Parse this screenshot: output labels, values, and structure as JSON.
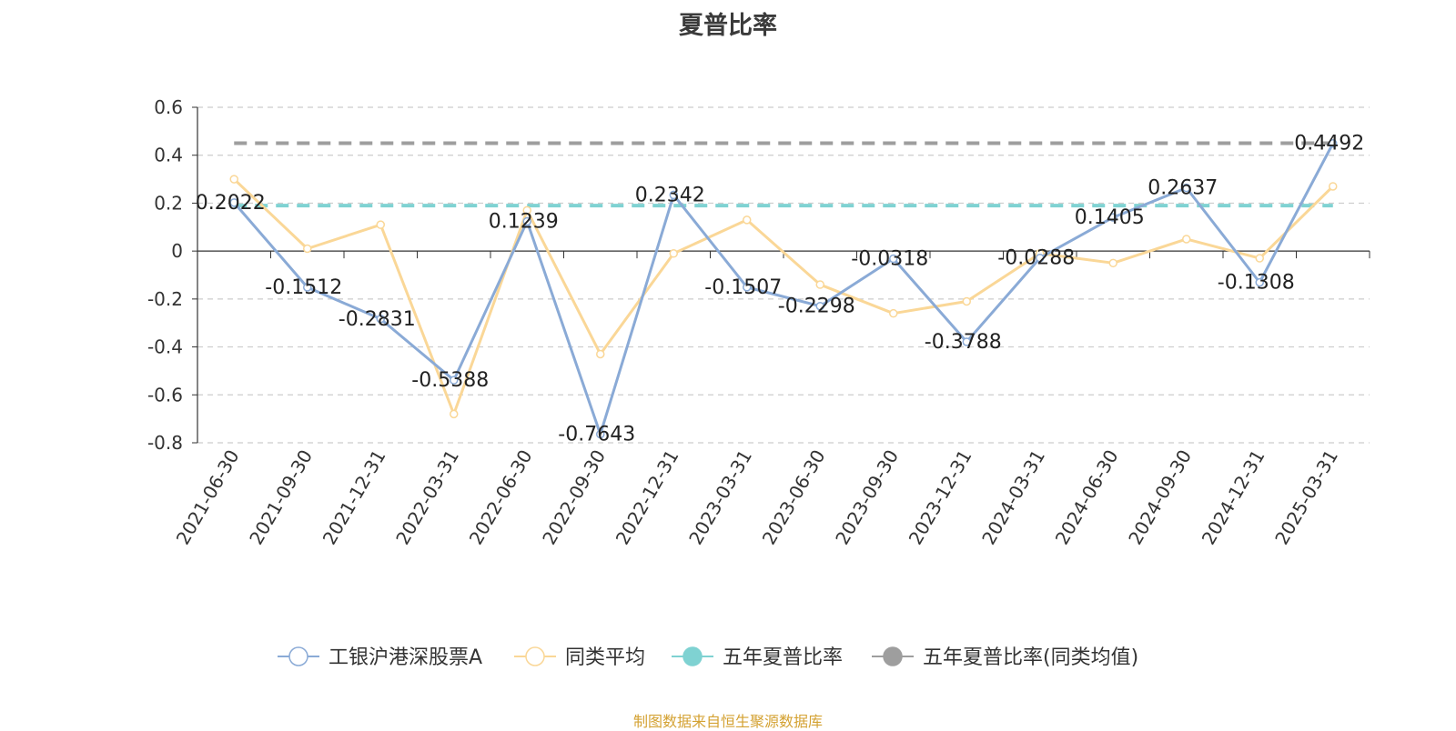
{
  "chart_data": {
    "type": "line",
    "title": "夏普比率",
    "categories": [
      "2021-06-30",
      "2021-09-30",
      "2021-12-31",
      "2022-03-31",
      "2022-06-30",
      "2022-09-30",
      "2022-12-31",
      "2023-03-31",
      "2023-06-30",
      "2023-09-30",
      "2023-12-31",
      "2024-03-31",
      "2024-06-30",
      "2024-09-30",
      "2024-12-31",
      "2025-03-31"
    ],
    "ylim": [
      -0.8,
      0.6
    ],
    "yticks": [
      0.6,
      0.4,
      0.2,
      0,
      -0.2,
      -0.4,
      -0.6,
      -0.8
    ],
    "grid": true,
    "legend_position": "bottom",
    "series": [
      {
        "name": "工银沪港深股票A",
        "color": "#8aaad6",
        "values": [
          0.2022,
          -0.1512,
          -0.2831,
          -0.5388,
          0.1239,
          -0.7643,
          0.2342,
          -0.1507,
          -0.2298,
          -0.0318,
          -0.3788,
          -0.0288,
          0.1405,
          0.2637,
          -0.1308,
          0.4492
        ],
        "data_labels": [
          "0.2022",
          "-0.1512",
          "-0.2831",
          "-0.5388",
          "0.1239",
          "-0.7643",
          "0.2342",
          "-0.1507",
          "-0.2298",
          "-0.0318",
          "-0.3788",
          "-0.0288",
          "0.1405",
          "0.2637",
          "-0.1308",
          "0.4492"
        ]
      },
      {
        "name": "同类平均",
        "color": "#fad797",
        "values": [
          0.3,
          0.01,
          0.11,
          -0.68,
          0.17,
          -0.43,
          -0.01,
          0.13,
          -0.14,
          -0.26,
          -0.21,
          -0.01,
          -0.05,
          0.05,
          -0.03,
          0.27
        ]
      },
      {
        "name": "五年夏普比率",
        "color": "#7fd2d2",
        "reference_line": 0.19
      },
      {
        "name": "五年夏普比率(同类均值)",
        "color": "#9e9e9e",
        "reference_line": 0.45
      }
    ],
    "source_note": "制图数据来自恒生聚源数据库"
  }
}
